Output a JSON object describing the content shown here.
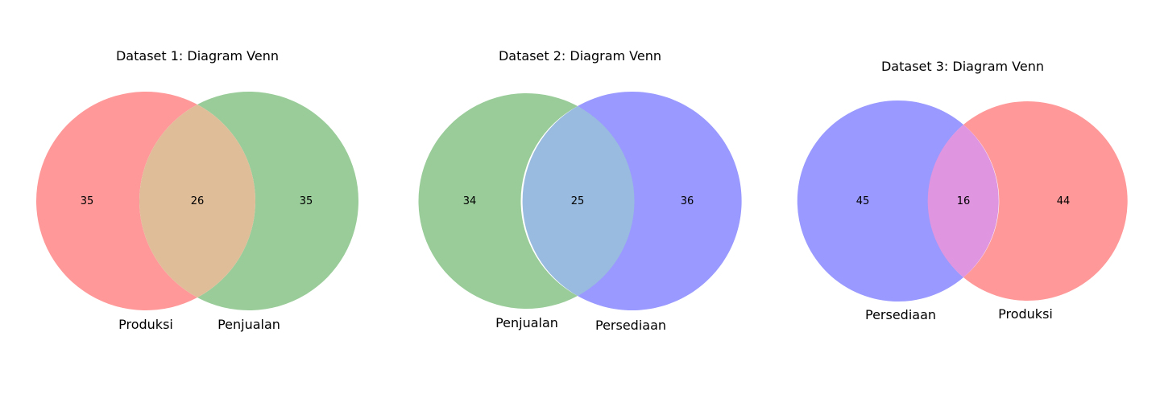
{
  "chart_data": [
    {
      "type": "venn",
      "title": "Dataset 1: Diagram Venn",
      "sets": [
        {
          "name": "Produksi",
          "color": "#ff9999",
          "only": 35
        },
        {
          "name": "Penjualan",
          "color": "#99cc99",
          "only": 35
        }
      ],
      "intersection": 26,
      "intersection_color": "#dfbd99"
    },
    {
      "type": "venn",
      "title": "Dataset 2: Diagram Venn",
      "sets": [
        {
          "name": "Penjualan",
          "color": "#99cc99",
          "only": 34
        },
        {
          "name": "Persediaan",
          "color": "#9999ff",
          "only": 36
        }
      ],
      "intersection": 25,
      "intersection_color": "#99bbdf"
    },
    {
      "type": "venn",
      "title": "Dataset 3: Diagram Venn",
      "sets": [
        {
          "name": "Persediaan",
          "color": "#9999ff",
          "only": 45
        },
        {
          "name": "Produksi",
          "color": "#ff9999",
          "only": 44
        }
      ],
      "intersection": 16,
      "intersection_color": "#df95df"
    }
  ]
}
